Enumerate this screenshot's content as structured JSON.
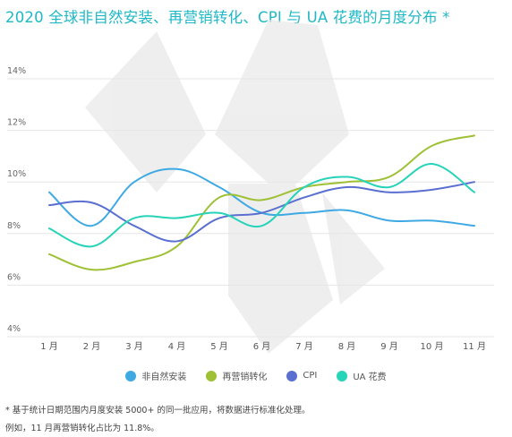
{
  "title": "2020 全球非自然安装、再营销转化、CPI 与 UA 花费的月度分布 *",
  "chart_data": {
    "type": "line",
    "categories": [
      "1 月",
      "2 月",
      "3 月",
      "4 月",
      "5 月",
      "6 月",
      "7 月",
      "8 月",
      "9 月",
      "10 月",
      "11 月"
    ],
    "ylim": [
      4,
      14
    ],
    "yticks": [
      4,
      6,
      8,
      10,
      12,
      14
    ],
    "ytick_labels": [
      "4%",
      "6%",
      "8%",
      "10%",
      "12%",
      "14%"
    ],
    "grid": true,
    "legend_position": "bottom",
    "series": [
      {
        "name": "非自然安装",
        "color": "#3fa9e3",
        "values": [
          9.6,
          8.3,
          10.0,
          10.5,
          9.8,
          8.8,
          8.8,
          8.9,
          8.5,
          8.5,
          8.3
        ]
      },
      {
        "name": "再营销转化",
        "color": "#9ec136",
        "values": [
          7.2,
          6.6,
          6.9,
          7.5,
          9.4,
          9.3,
          9.8,
          10.0,
          10.2,
          11.4,
          11.8
        ]
      },
      {
        "name": "CPI",
        "color": "#5a6fcf",
        "values": [
          9.1,
          9.2,
          8.3,
          7.7,
          8.6,
          8.8,
          9.4,
          9.8,
          9.6,
          9.7,
          10.0
        ]
      },
      {
        "name": "UA 花费",
        "color": "#27d3b9",
        "values": [
          8.2,
          7.5,
          8.6,
          8.6,
          8.8,
          8.3,
          9.8,
          10.2,
          9.8,
          10.7,
          9.6
        ]
      }
    ]
  },
  "footnote_1": "* 基于统计日期范围内月度安装 5000+ 的同一批应用，将数据进行标准化处理。",
  "footnote_2": "例如，11 月再营销转化占比为 11.8%。"
}
